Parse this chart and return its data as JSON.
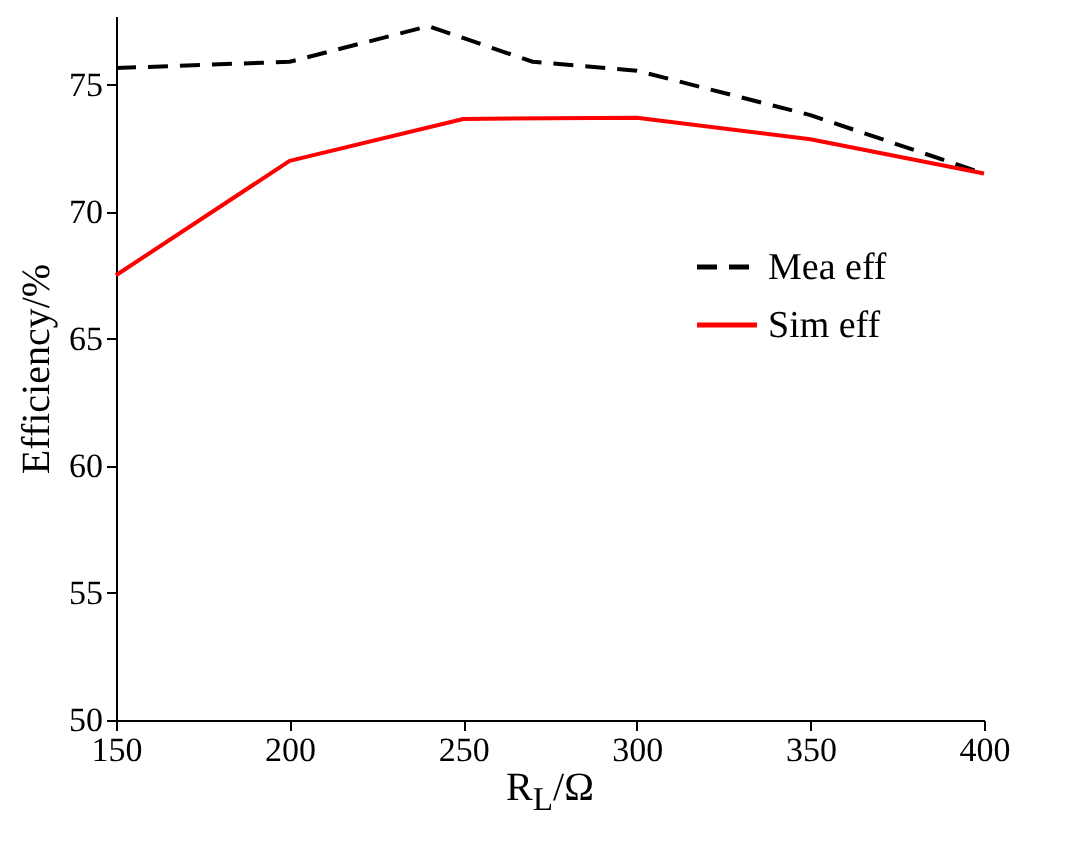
{
  "chart_data": {
    "type": "line",
    "xlabel": "R$_{L}$/Ω",
    "ylabel": "Efficiency/%",
    "xlim": [
      150,
      400
    ],
    "xticks": [
      150,
      200,
      250,
      300,
      350,
      400
    ],
    "ylim": [
      50,
      77.7
    ],
    "yticks": [
      50,
      55,
      60,
      65,
      70,
      75
    ],
    "grid": false,
    "legend": "right",
    "marker": "none",
    "series": [
      {
        "name": "Mea eff",
        "color": "#000000",
        "line_style": "dashed",
        "x": [
          150,
          200,
          240,
          270,
          300,
          350,
          400
        ],
        "values": [
          75.65,
          75.9,
          77.3,
          75.9,
          75.55,
          73.8,
          71.5
        ]
      },
      {
        "name": "Sim eff",
        "color": "#ff0000",
        "line_style": "solid",
        "x": [
          150,
          200,
          250,
          300,
          350,
          400
        ],
        "values": [
          67.5,
          72.0,
          73.65,
          73.7,
          72.85,
          71.5
        ]
      }
    ]
  }
}
